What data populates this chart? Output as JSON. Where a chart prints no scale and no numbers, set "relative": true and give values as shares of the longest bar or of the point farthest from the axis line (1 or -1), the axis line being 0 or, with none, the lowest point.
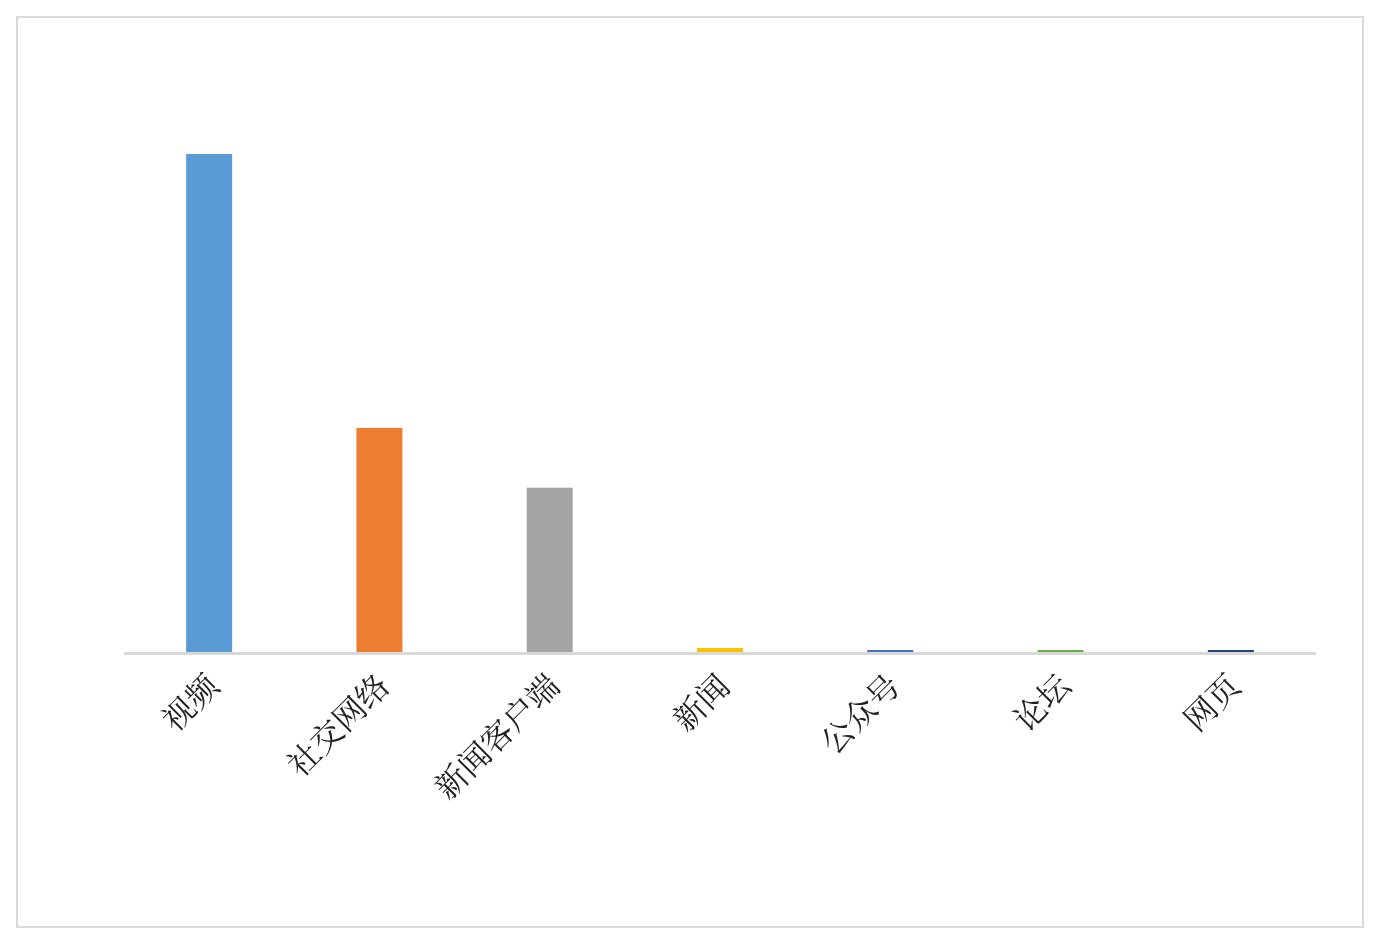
{
  "chart_data": {
    "type": "bar",
    "categories": [
      "视频",
      "社交网络",
      "新闻客户端",
      "新闻",
      "公众号",
      "论坛",
      "网页"
    ],
    "values": [
      1,
      0.45,
      0.33,
      0.008,
      0.004,
      0.004,
      0.004
    ],
    "colors": [
      "#5b9bd5",
      "#ed7d31",
      "#a5a5a5",
      "#ffc000",
      "#4472c4",
      "#70ad47",
      "#264478"
    ],
    "relative": true
  }
}
